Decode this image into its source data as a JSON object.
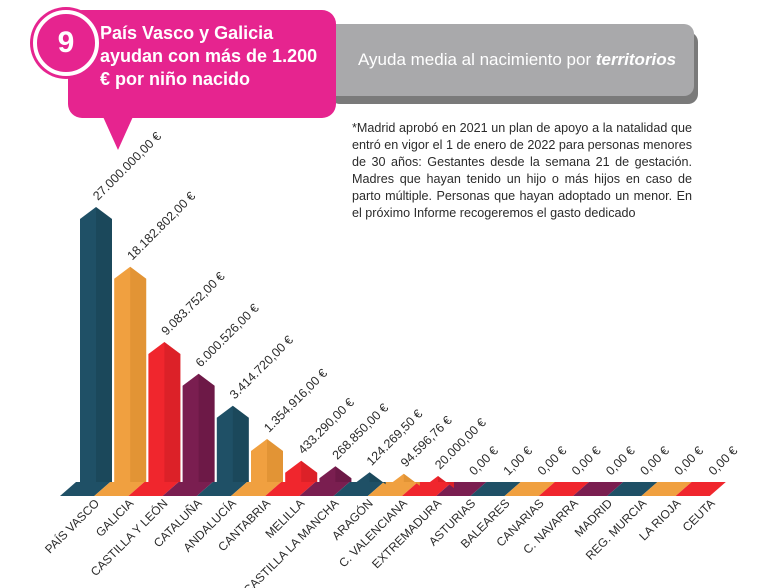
{
  "header": {
    "number": "9",
    "title": "País Vasco y Galicia ayudan con más de 1.200 € por niño nacido",
    "subtitle_prefix": "Ayuda media al nacimiento por ",
    "subtitle_emphasis": "territorios"
  },
  "note": "*Madrid aprobó en 2021 un plan de apoyo a la natalidad que entró en vigor el 1 de enero de 2022 para personas menores de 30 años: Gestantes desde la semana 21 de gestación. Madres que hayan tenido un hijo o más hijos en caso de parto múltiple. Personas que hayan adoptado un menor. En el próximo Informe recogeremos el gasto dedicado",
  "colors": {
    "accent": "#e6248f",
    "teal": "#1f5066",
    "orange": "#f0a040",
    "red": "#f0262d",
    "purple": "#7a1e50"
  },
  "chart_data": {
    "type": "bar",
    "style": "3d-pyramid-top",
    "categories": [
      "PAÍS VASCO",
      "GALICIA",
      "CASTILLA Y LEÓN",
      "CATALUÑA",
      "ANDALUCÍA",
      "CANTABRIA",
      "MELILLA",
      "CASTILLA LA MANCHA",
      "ARAGÓN",
      "C. VALENCIANA",
      "EXTREMADURA",
      "ASTURIAS",
      "BALEARES",
      "CANARIAS",
      "C. NAVARRA",
      "MADRID",
      "REG. MURCIA",
      "LA RIOJA",
      "CEUTA"
    ],
    "values": [
      27000000.0,
      18182802.0,
      9083752.0,
      6000526.0,
      3414720.0,
      1354916.0,
      433290.0,
      268850.0,
      124269.5,
      94596.76,
      20000.0,
      0.0,
      1.0,
      0.0,
      0.0,
      0.0,
      0.0,
      0.0,
      0.0
    ],
    "value_labels": [
      "27.000.000,00 €",
      "18.182.802,00 €",
      "9.083.752,00 €",
      "6.000.526,00 €",
      "3.414.720,00 €",
      "1.354.916,00 €",
      "433.290,00 €",
      "268.850,00 €",
      "124.269,50 €",
      "94.596,76 €",
      "20.000,00 €",
      "0,00 €",
      "1,00 €",
      "0,00 €",
      "0,00 €",
      "0,00 €",
      "0,00 €",
      "0,00 €",
      "0,00 €"
    ],
    "bar_colors": [
      "teal",
      "orange",
      "red",
      "purple",
      "teal",
      "orange",
      "red",
      "purple",
      "teal",
      "orange",
      "red",
      "purple",
      "teal",
      "orange",
      "red",
      "purple",
      "teal",
      "orange",
      "red"
    ],
    "title": "Ayuda media al nacimiento por territorios",
    "xlabel": "",
    "ylabel": "",
    "currency": "€"
  }
}
